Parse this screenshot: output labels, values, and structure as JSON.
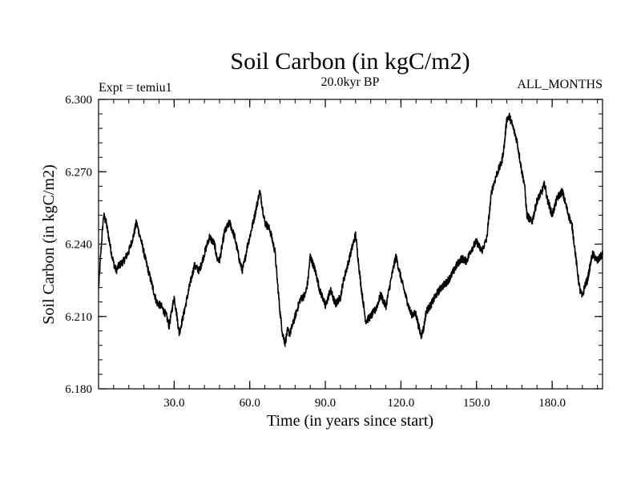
{
  "chart_data": {
    "type": "line",
    "title": "Soil Carbon (in kgC/m2)",
    "subtitle_left": "Expt = temiu1",
    "subtitle_center": "20.0kyr BP",
    "subtitle_right": "ALL_MONTHS",
    "xlabel": "Time (in years since start)",
    "ylabel": "Soil Carbon (in kgC/m2)",
    "xlim": [
      0,
      200
    ],
    "ylim": [
      6.18,
      6.3
    ],
    "x_ticks": [
      30,
      60,
      90,
      120,
      150,
      180
    ],
    "x_tick_labels": [
      "30.0",
      "60.0",
      "90.0",
      "120.0",
      "150.0",
      "180.0"
    ],
    "y_ticks": [
      6.18,
      6.21,
      6.24,
      6.27,
      6.3
    ],
    "y_tick_labels": [
      "6.180",
      "6.210",
      "6.240",
      "6.270",
      "6.300"
    ],
    "x_minor_step": 6,
    "y_minor_step": 0.006,
    "grid": false,
    "series": [
      {
        "name": "Soil Carbon",
        "color": "#000000",
        "x": [
          0,
          1,
          2,
          3,
          4,
          5,
          6,
          7,
          8,
          10,
          12,
          14,
          15,
          17,
          19,
          21,
          23,
          25,
          26,
          27,
          28,
          29,
          30,
          31,
          32,
          34,
          36,
          38,
          40,
          42,
          44,
          46,
          47,
          48,
          50,
          52,
          54,
          56,
          57,
          58,
          59,
          60,
          62,
          64,
          66,
          68,
          70,
          71,
          72,
          73,
          74,
          75,
          76,
          78,
          80,
          82,
          83,
          84,
          86,
          88,
          89,
          90,
          92,
          94,
          96,
          97,
          98,
          100,
          102,
          104,
          106,
          108,
          110,
          112,
          114,
          116,
          118,
          120,
          122,
          124,
          126,
          127,
          128,
          129,
          130,
          132,
          134,
          136,
          138,
          140,
          142,
          144,
          146,
          148,
          150,
          152,
          154,
          156,
          158,
          160,
          161,
          162,
          163,
          164,
          166,
          168,
          169,
          170,
          172,
          174,
          176,
          177,
          178,
          180,
          182,
          184,
          186,
          188,
          190,
          191,
          192,
          193,
          194,
          196,
          198,
          200
        ],
        "values": [
          6.221,
          6.238,
          6.252,
          6.249,
          6.243,
          6.237,
          6.232,
          6.229,
          6.231,
          6.233,
          6.237,
          6.244,
          6.249,
          6.241,
          6.232,
          6.224,
          6.216,
          6.214,
          6.212,
          6.21,
          6.206,
          6.212,
          6.218,
          6.211,
          6.203,
          6.212,
          6.222,
          6.231,
          6.229,
          6.236,
          6.243,
          6.24,
          6.234,
          6.233,
          6.245,
          6.249,
          6.243,
          6.233,
          6.229,
          6.233,
          6.239,
          6.243,
          6.252,
          6.262,
          6.249,
          6.246,
          6.237,
          6.224,
          6.212,
          6.203,
          6.199,
          6.204,
          6.203,
          6.21,
          6.217,
          6.219,
          6.224,
          6.235,
          6.229,
          6.22,
          6.218,
          6.214,
          6.221,
          6.215,
          6.218,
          6.224,
          6.228,
          6.236,
          6.244,
          6.224,
          6.208,
          6.21,
          6.213,
          6.219,
          6.214,
          6.225,
          6.235,
          6.226,
          6.218,
          6.211,
          6.211,
          6.206,
          6.202,
          6.205,
          6.212,
          6.215,
          6.219,
          6.222,
          6.224,
          6.227,
          6.231,
          6.234,
          6.233,
          6.238,
          6.241,
          6.237,
          6.242,
          6.262,
          6.269,
          6.274,
          6.281,
          6.292,
          6.293,
          6.29,
          6.283,
          6.27,
          6.265,
          6.252,
          6.249,
          6.258,
          6.262,
          6.265,
          6.259,
          6.252,
          6.259,
          6.262,
          6.254,
          6.247,
          6.229,
          6.221,
          6.218,
          6.223,
          6.225,
          6.236,
          6.233,
          6.236
        ]
      }
    ]
  }
}
